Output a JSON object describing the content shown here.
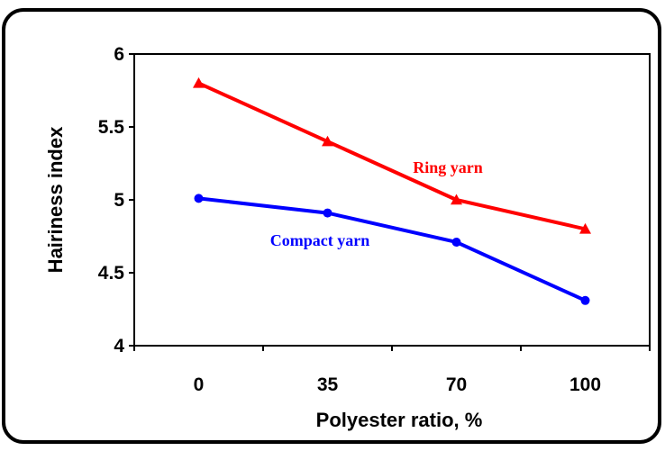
{
  "chart_data": {
    "type": "line",
    "title": "",
    "xlabel": "Polyester ratio, %",
    "ylabel": "Hairiness index",
    "categories": [
      "0",
      "35",
      "70",
      "100"
    ],
    "yticks": [
      "4",
      "4.5",
      "5",
      "5.5",
      "6"
    ],
    "ylim": [
      4,
      6
    ],
    "grid": false,
    "series": [
      {
        "name": "Ring yarn",
        "values": [
          5.8,
          5.4,
          5.0,
          4.8
        ],
        "color": "#ff0000",
        "marker": "triangle"
      },
      {
        "name": "Compact yarn",
        "values": [
          5.01,
          4.91,
          4.71,
          4.31
        ],
        "color": "#0000ff",
        "marker": "circle"
      }
    ]
  }
}
